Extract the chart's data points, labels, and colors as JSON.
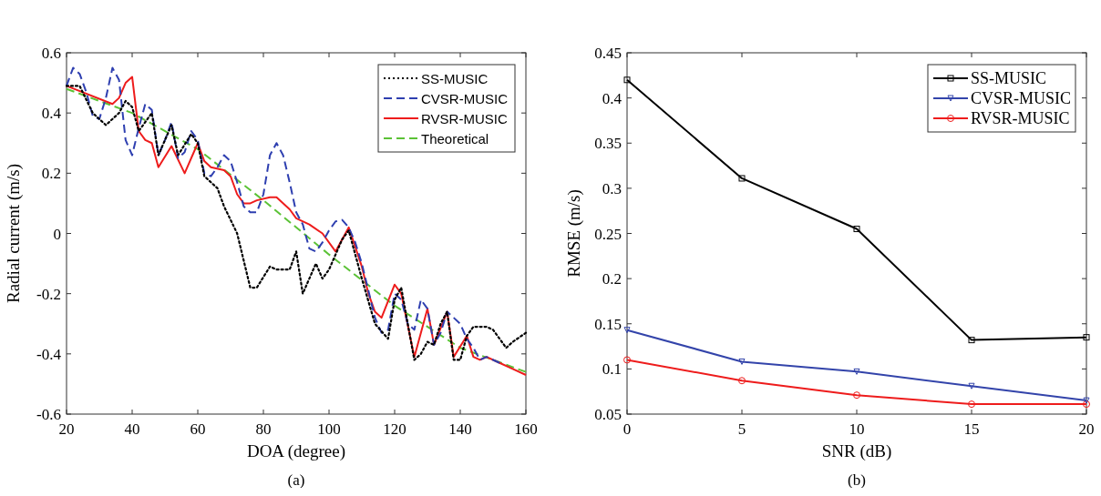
{
  "chart_data": [
    {
      "type": "line",
      "xlabel": "DOA (degree)",
      "ylabel": "Radial current (m/s)",
      "annotations": [
        "(a)"
      ],
      "xlim": [
        20,
        160
      ],
      "xticks": [
        20,
        40,
        60,
        80,
        100,
        120,
        140,
        160
      ],
      "ylim": [
        -0.6,
        0.6
      ],
      "yticks": [
        -0.6,
        -0.4,
        -0.2,
        0,
        0.2,
        0.4,
        0.6
      ],
      "grid": false,
      "legend": "top right",
      "marker": "none",
      "series": [
        {
          "name": "SS-MUSIC",
          "color": "#000000",
          "line_style": "dotted",
          "x": [
            20,
            24,
            28,
            32,
            36,
            38,
            40,
            42,
            46,
            48,
            52,
            54,
            58,
            60,
            62,
            66,
            68,
            72,
            76,
            78,
            82,
            84,
            88,
            90,
            92,
            96,
            98,
            100,
            102,
            104,
            106,
            110,
            114,
            118,
            120,
            122,
            126,
            128,
            130,
            132,
            134,
            136,
            138,
            140,
            142,
            144,
            148,
            150,
            154,
            156,
            160
          ],
          "values": [
            0.49,
            0.49,
            0.4,
            0.36,
            0.4,
            0.44,
            0.42,
            0.34,
            0.4,
            0.26,
            0.36,
            0.26,
            0.33,
            0.3,
            0.19,
            0.15,
            0.09,
            0.0,
            -0.18,
            -0.18,
            -0.11,
            -0.12,
            -0.12,
            -0.06,
            -0.2,
            -0.1,
            -0.15,
            -0.12,
            -0.07,
            -0.02,
            0.01,
            -0.15,
            -0.3,
            -0.35,
            -0.22,
            -0.18,
            -0.42,
            -0.4,
            -0.36,
            -0.37,
            -0.3,
            -0.26,
            -0.42,
            -0.42,
            -0.34,
            -0.31,
            -0.31,
            -0.32,
            -0.38,
            -0.36,
            -0.33
          ]
        },
        {
          "name": "CVSR-MUSIC",
          "color": "#2e3fb0",
          "line_style": "dashed",
          "x": [
            20,
            22,
            24,
            26,
            28,
            30,
            32,
            34,
            36,
            38,
            40,
            42,
            44,
            46,
            48,
            50,
            52,
            54,
            56,
            58,
            60,
            62,
            64,
            66,
            68,
            70,
            72,
            74,
            76,
            78,
            80,
            82,
            84,
            86,
            88,
            90,
            92,
            94,
            96,
            98,
            100,
            102,
            104,
            106,
            108,
            110,
            112,
            114,
            116,
            118,
            120,
            122,
            124,
            126,
            128,
            130,
            132,
            134,
            136,
            138,
            140,
            142,
            144,
            146,
            148,
            152
          ],
          "values": [
            0.49,
            0.55,
            0.53,
            0.47,
            0.39,
            0.38,
            0.45,
            0.55,
            0.51,
            0.31,
            0.26,
            0.35,
            0.43,
            0.41,
            0.26,
            0.31,
            0.37,
            0.25,
            0.27,
            0.34,
            0.31,
            0.2,
            0.19,
            0.22,
            0.26,
            0.24,
            0.17,
            0.09,
            0.07,
            0.07,
            0.13,
            0.26,
            0.3,
            0.26,
            0.17,
            0.07,
            0.03,
            -0.05,
            -0.06,
            -0.03,
            0.01,
            0.04,
            0.045,
            0.02,
            -0.03,
            -0.1,
            -0.19,
            -0.28,
            -0.33,
            -0.32,
            -0.2,
            -0.22,
            -0.3,
            -0.32,
            -0.22,
            -0.25,
            -0.37,
            -0.33,
            -0.26,
            -0.28,
            -0.3,
            -0.35,
            -0.38,
            -0.42,
            -0.41,
            -0.43
          ]
        },
        {
          "name": "RVSR-MUSIC",
          "color": "#ee1c1c",
          "line_style": "solid",
          "x": [
            20,
            34,
            36,
            38,
            40,
            42,
            44,
            46,
            48,
            52,
            56,
            60,
            62,
            64,
            68,
            70,
            72,
            74,
            76,
            78,
            82,
            84,
            88,
            90,
            94,
            98,
            102,
            106,
            110,
            112,
            114,
            116,
            120,
            122,
            126,
            130,
            132,
            136,
            138,
            142,
            144,
            146,
            148,
            152,
            156,
            160
          ],
          "values": [
            0.49,
            0.43,
            0.45,
            0.5,
            0.52,
            0.34,
            0.31,
            0.3,
            0.22,
            0.29,
            0.2,
            0.3,
            0.24,
            0.22,
            0.21,
            0.19,
            0.13,
            0.1,
            0.1,
            0.11,
            0.12,
            0.12,
            0.08,
            0.05,
            0.03,
            0.0,
            -0.06,
            0.02,
            -0.11,
            -0.2,
            -0.26,
            -0.28,
            -0.17,
            -0.2,
            -0.41,
            -0.25,
            -0.37,
            -0.26,
            -0.41,
            -0.34,
            -0.41,
            -0.42,
            -0.41,
            -0.43,
            -0.45,
            -0.47
          ]
        },
        {
          "name": "Theoretical",
          "color": "#5bc236",
          "line_style": "dashed",
          "x": [
            20,
            40,
            60,
            80,
            100,
            120,
            140,
            160
          ],
          "values": [
            0.48,
            0.4,
            0.28,
            0.11,
            -0.07,
            -0.24,
            -0.38,
            -0.46
          ]
        }
      ]
    },
    {
      "type": "line",
      "xlabel": "SNR (dB)",
      "ylabel": "RMSE (m/s)",
      "annotations": [
        "(b)"
      ],
      "xlim": [
        0,
        20
      ],
      "xticks": [
        0,
        5,
        10,
        15,
        20
      ],
      "ylim": [
        0.05,
        0.45
      ],
      "yticks": [
        0.05,
        0.1,
        0.15,
        0.2,
        0.25,
        0.3,
        0.35,
        0.4,
        0.45
      ],
      "grid": false,
      "legend": "top right",
      "line_style": "solid",
      "series": [
        {
          "name": "SS-MUSIC",
          "color": "#000000",
          "marker": "square",
          "x": [
            0,
            5,
            10,
            15,
            20
          ],
          "values": [
            0.42,
            0.311,
            0.255,
            0.132,
            0.135
          ]
        },
        {
          "name": "CVSR-MUSIC",
          "color": "#3344aa",
          "marker": "triangle",
          "x": [
            0,
            5,
            10,
            15,
            20
          ],
          "values": [
            0.143,
            0.108,
            0.097,
            0.081,
            0.065
          ]
        },
        {
          "name": "RVSR-MUSIC",
          "color": "#ee1c1c",
          "marker": "circle",
          "x": [
            0,
            5,
            10,
            15,
            20
          ],
          "values": [
            0.11,
            0.087,
            0.071,
            0.061,
            0.061
          ]
        }
      ]
    }
  ]
}
